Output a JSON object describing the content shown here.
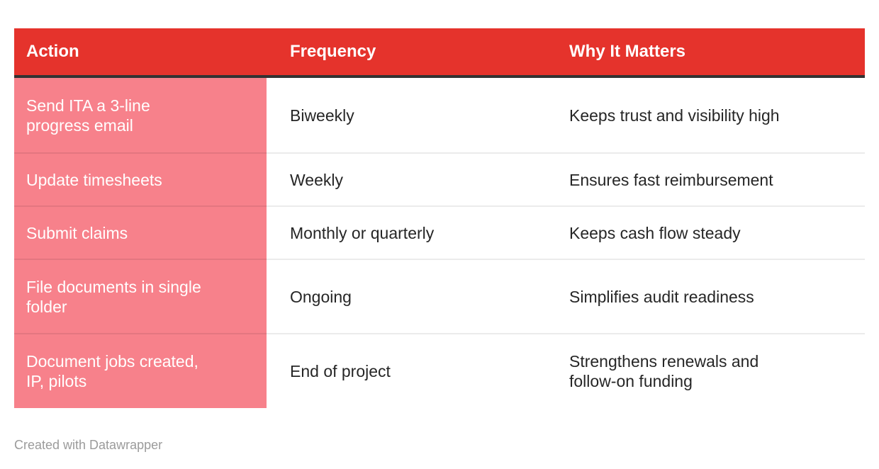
{
  "chart_data": {
    "type": "table",
    "title": "",
    "columns": [
      "Action",
      "Frequency",
      "Why It Matters"
    ],
    "rows": [
      [
        "Send ITA a 3-line progress email",
        "Biweekly",
        "Keeps trust and visibility high"
      ],
      [
        "Update timesheets",
        "Weekly",
        "Ensures fast reimbursement"
      ],
      [
        "Submit claims",
        "Monthly or quarterly",
        "Keeps cash flow steady"
      ],
      [
        "File documents in single folder",
        "Ongoing",
        "Simplifies audit readiness"
      ],
      [
        "Document jobs created, IP, pilots",
        "End of project",
        "Strengthens renewals and follow-on funding"
      ]
    ],
    "legend_position": "none",
    "grid": false
  },
  "table": {
    "header": [
      "Action",
      "Frequency",
      "Why It Matters"
    ],
    "rows": [
      [
        "Send ITA a 3-line\nprogress email",
        "Biweekly",
        "Keeps trust and visibility high"
      ],
      [
        "Update timesheets",
        "Weekly",
        "Ensures fast reimbursement"
      ],
      [
        "Submit claims",
        "Monthly or quarterly",
        "Keeps cash flow steady"
      ],
      [
        "File documents in single\nfolder",
        "Ongoing",
        "Simplifies audit readiness"
      ],
      [
        "Document jobs created,\nIP, pilots",
        "End of project",
        "Strengthens renewals and\nfollow-on funding"
      ]
    ]
  },
  "footer": {
    "credit": "Created with Datawrapper"
  },
  "colors": {
    "header_bg": "#e5332c",
    "header_border": "#323232",
    "action_column_bg": "#f7818b",
    "header_text": "#ffffff",
    "action_column_text": "#ffffff",
    "body_text": "#262626",
    "row_divider": "rgba(0,0,0,0.08)",
    "credit_text": "#9b9b9b",
    "page_bg": "#ffffff"
  }
}
